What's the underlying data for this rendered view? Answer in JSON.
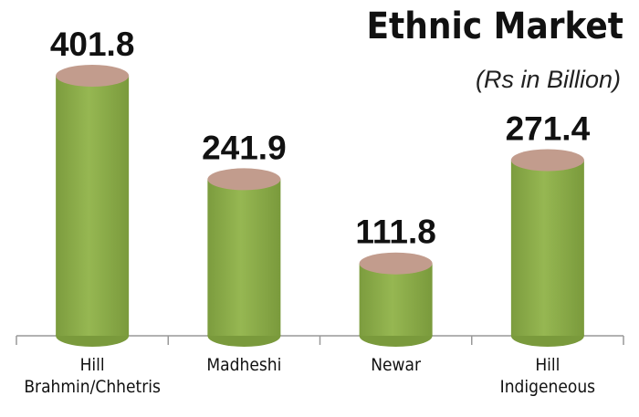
{
  "chart_data": {
    "type": "bar",
    "title": "Ethnic Market",
    "subtitle": "(Rs in Billion)",
    "categories": [
      "Hill\nBrahmin/Chhetris",
      "Madheshi",
      "Newar",
      "Hill\nIndigeneous"
    ],
    "values": [
      401.8,
      241.9,
      111.8,
      271.4
    ],
    "color": "#8aab4a",
    "top_color": "#c29c8d"
  }
}
